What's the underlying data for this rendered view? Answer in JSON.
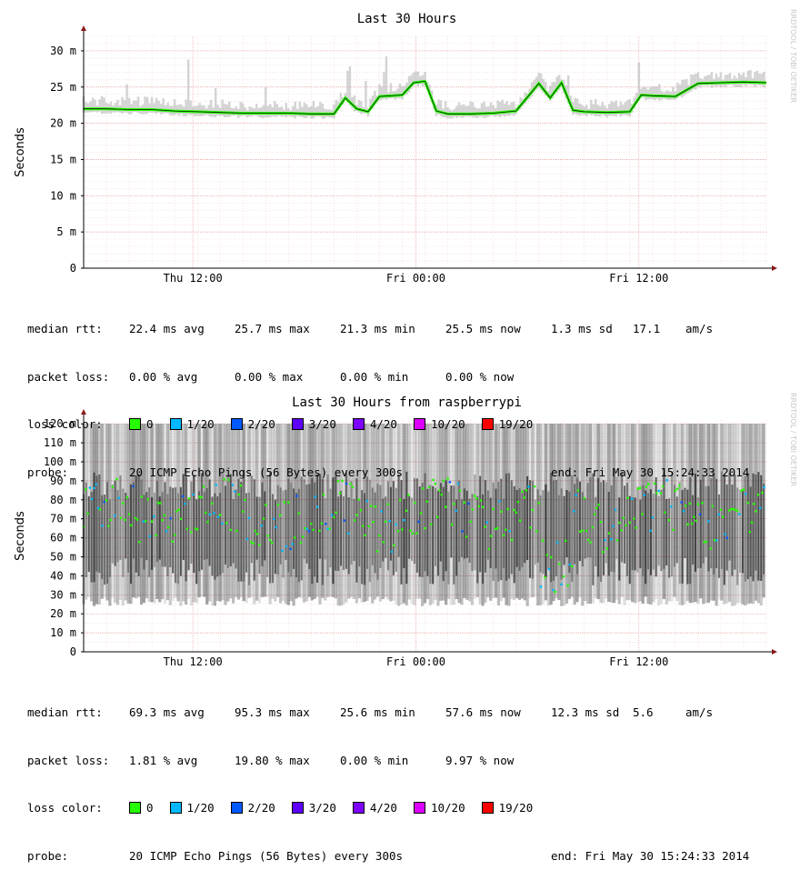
{
  "watermark": "RRDTOOL / TOBI OETIKER",
  "chart_data": [
    {
      "type": "line",
      "title": "Last 30 Hours",
      "ylabel": "Seconds",
      "yunit": "m",
      "ylim": [
        0,
        32
      ],
      "yticks": [
        0,
        5,
        10,
        15,
        20,
        25,
        30
      ],
      "ytick_labels": [
        "0",
        "5 m",
        "10 m",
        "15 m",
        "20 m",
        "25 m",
        "30 m"
      ],
      "xticks": [
        "Thu 12:00",
        "Fri 00:00",
        "Fri 12:00"
      ],
      "grid": true,
      "median_series": [
        [
          0,
          22
        ],
        [
          1,
          22
        ],
        [
          2,
          21.9
        ],
        [
          3,
          21.9
        ],
        [
          4,
          21.7
        ],
        [
          5,
          21.6
        ],
        [
          6,
          21.5
        ],
        [
          7,
          21.4
        ],
        [
          8,
          21.4
        ],
        [
          9,
          21.4
        ],
        [
          10,
          21.3
        ],
        [
          11,
          21.3
        ],
        [
          11.5,
          23.5
        ],
        [
          12,
          22
        ],
        [
          12.5,
          21.6
        ],
        [
          13,
          23.7
        ],
        [
          14,
          23.9
        ],
        [
          14.5,
          25.6
        ],
        [
          15,
          25.8
        ],
        [
          15.5,
          21.7
        ],
        [
          16,
          21.3
        ],
        [
          17,
          21.3
        ],
        [
          18,
          21.4
        ],
        [
          19,
          21.7
        ],
        [
          20,
          25.5
        ],
        [
          20.5,
          23.5
        ],
        [
          21,
          25.6
        ],
        [
          21.5,
          21.8
        ],
        [
          22,
          21.6
        ],
        [
          23,
          21.5
        ],
        [
          24,
          21.6
        ],
        [
          24.5,
          23.9
        ],
        [
          25,
          23.8
        ],
        [
          26,
          23.7
        ],
        [
          27,
          25.5
        ],
        [
          28,
          25.6
        ],
        [
          29,
          25.7
        ],
        [
          30,
          25.6
        ]
      ],
      "stats": {
        "median_rtt": {
          "label": "median rtt:",
          "avg": "22.4 ms avg",
          "max": "25.7 ms max",
          "min": "21.3 ms min",
          "now": "25.5 ms now",
          "sd": "1.3 ms sd",
          "ams": "17.1",
          "ams_unit": "am/s"
        },
        "packet_loss": {
          "label": "packet loss:",
          "avg": "0.00 % avg",
          "max": "0.00 % max",
          "min": "0.00 % min",
          "now": "0.00 % now"
        },
        "loss_color": {
          "label": "loss color:",
          "items": [
            {
              "label": "0",
              "color": "#26ff00"
            },
            {
              "label": "1/20",
              "color": "#00b8ff"
            },
            {
              "label": "2/20",
              "color": "#0059ff"
            },
            {
              "label": "3/20",
              "color": "#5e00ff"
            },
            {
              "label": "4/20",
              "color": "#7e00ff"
            },
            {
              "label": "10/20",
              "color": "#dd00ff"
            },
            {
              "label": "19/20",
              "color": "#ff0000"
            }
          ]
        },
        "probe": {
          "label": "probe:",
          "text": "20 ICMP Echo Pings (56 Bytes) every 300s",
          "end": "end: Fri May 30 15:24:33 2014"
        }
      }
    },
    {
      "type": "scatter",
      "title": "Last 30 Hours from raspberrypi",
      "ylabel": "Seconds",
      "yunit": "m",
      "ylim": [
        0,
        122
      ],
      "yticks": [
        0,
        10,
        20,
        30,
        40,
        50,
        60,
        70,
        80,
        90,
        100,
        110,
        120
      ],
      "ytick_labels": [
        "0",
        "10 m",
        "20 m",
        "30 m",
        "40 m",
        "50 m",
        "60 m",
        "70 m",
        "80 m",
        "90 m",
        "100 m",
        "110 m",
        "120 m"
      ],
      "xticks": [
        "Thu 12:00",
        "Fri 00:00",
        "Fri 12:00"
      ],
      "grid": true,
      "stats": {
        "median_rtt": {
          "label": "median rtt:",
          "avg": "69.3 ms avg",
          "max": "95.3 ms max",
          "min": "25.6 ms min",
          "now": "57.6 ms now",
          "sd": "12.3 ms sd",
          "ams": "5.6",
          "ams_unit": "am/s"
        },
        "packet_loss": {
          "label": "packet loss:",
          "avg": "1.81 % avg",
          "max": "19.80 % max",
          "min": "0.00 % min",
          "now": "9.97 % now"
        },
        "loss_color": {
          "label": "loss color:",
          "items": [
            {
              "label": "0",
              "color": "#26ff00"
            },
            {
              "label": "1/20",
              "color": "#00b8ff"
            },
            {
              "label": "2/20",
              "color": "#0059ff"
            },
            {
              "label": "3/20",
              "color": "#5e00ff"
            },
            {
              "label": "4/20",
              "color": "#7e00ff"
            },
            {
              "label": "10/20",
              "color": "#dd00ff"
            },
            {
              "label": "19/20",
              "color": "#ff0000"
            }
          ]
        },
        "probe": {
          "label": "probe:",
          "text": "20 ICMP Echo Pings (56 Bytes) every 300s",
          "end": "end: Fri May 30 15:24:33 2014"
        }
      }
    }
  ]
}
